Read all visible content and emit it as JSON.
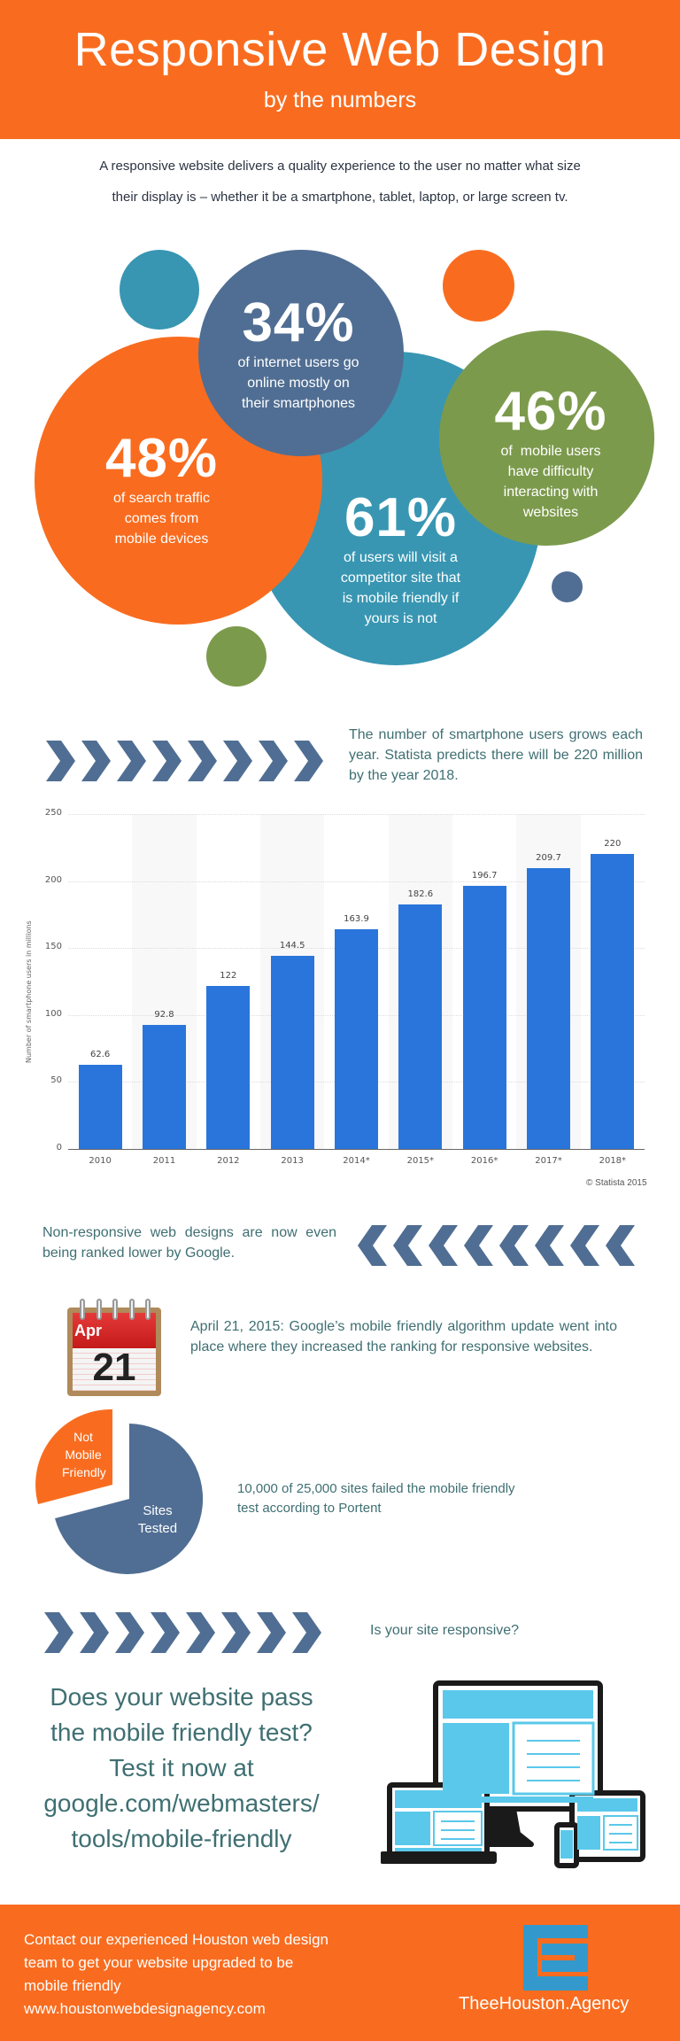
{
  "header": {
    "title": "Responsive Web Design",
    "subtitle": "by the numbers",
    "bg_color": "#f96c1f"
  },
  "intro": {
    "line1": "A responsive website delivers a quality experience to the user no matter what size",
    "line2": "their display is – whether it be a smartphone, tablet, laptop, or large screen tv."
  },
  "stats": [
    {
      "value": "48%",
      "lines": [
        "of search traffic",
        "comes from",
        "mobile devices"
      ],
      "color": "#f96c1f"
    },
    {
      "value": "34%",
      "lines": [
        "of internet users go",
        "online mostly on",
        "their smartphones"
      ],
      "color": "#506e93"
    },
    {
      "value": "61%",
      "lines": [
        "of users will visit a",
        "competitor site that",
        "is mobile friendly if",
        "yours is not"
      ],
      "color": "#3896b2"
    },
    {
      "value": "46%",
      "lines": [
        "of  mobile users",
        "have difficulty",
        "interacting with",
        "websites"
      ],
      "color": "#7c9a4c"
    }
  ],
  "smartphone_section": {
    "text": "The number of smartphone users grows each year. Statista predicts there will be 220 million by the year 2018.",
    "chevron_count": 8,
    "chevron_color": "#506e93"
  },
  "chart_data": {
    "type": "bar",
    "title": "",
    "categories": [
      "2010",
      "2011",
      "2012",
      "2013",
      "2014*",
      "2015*",
      "2016*",
      "2017*",
      "2018*"
    ],
    "values": [
      62.6,
      92.8,
      122,
      144.5,
      163.9,
      182.6,
      196.7,
      209.7,
      220
    ],
    "value_labels": [
      "62.6",
      "92.8",
      "122",
      "144.5",
      "163.9",
      "182.6",
      "196.7",
      "209.7",
      "220"
    ],
    "xlabel": "",
    "ylabel": "Number of smartphone users in millions",
    "ylim": [
      0,
      250
    ],
    "yticks": [
      "0",
      "50",
      "100",
      "150",
      "200",
      "250"
    ],
    "grid": true,
    "bar_color": "#2a75db",
    "source": "© Statista 2015"
  },
  "google_section": {
    "text": "Non-responsive web designs are now even being ranked lower by Google.",
    "chevron_count": 8
  },
  "calendar": {
    "month": "Apr",
    "day": "21",
    "text": "April 21, 2015: Google’s mobile friendly algorithm update went into place where they increased the ranking for responsive websites."
  },
  "pie": {
    "slices": [
      {
        "label": "Not Mobile Friendly",
        "lines": [
          "Not",
          "Mobile",
          "Friendly"
        ],
        "color": "#f96c1f"
      },
      {
        "label": "Sites Tested",
        "lines": [
          "Sites",
          "Tested"
        ],
        "color": "#506e93"
      }
    ],
    "text_line1": "10,000 of 25,000 sites failed the mobile friendly",
    "text_line2": "test according to Portent"
  },
  "responsive_question": {
    "text": "Is your site responsive?",
    "chevron_count": 8
  },
  "cta": {
    "lines": [
      "Does your website pass",
      "the mobile friendly test?",
      "Test it now at",
      "google.com/webmasters/",
      "tools/mobile-friendly"
    ]
  },
  "footer": {
    "lines": [
      "Contact our experienced Houston web design",
      "team to get your website upgraded to be",
      "mobile friendly",
      "www.houstonwebdesignagency.com"
    ],
    "agency_name": "TheeHouston.Agency",
    "logo_color": "#3399cc"
  }
}
